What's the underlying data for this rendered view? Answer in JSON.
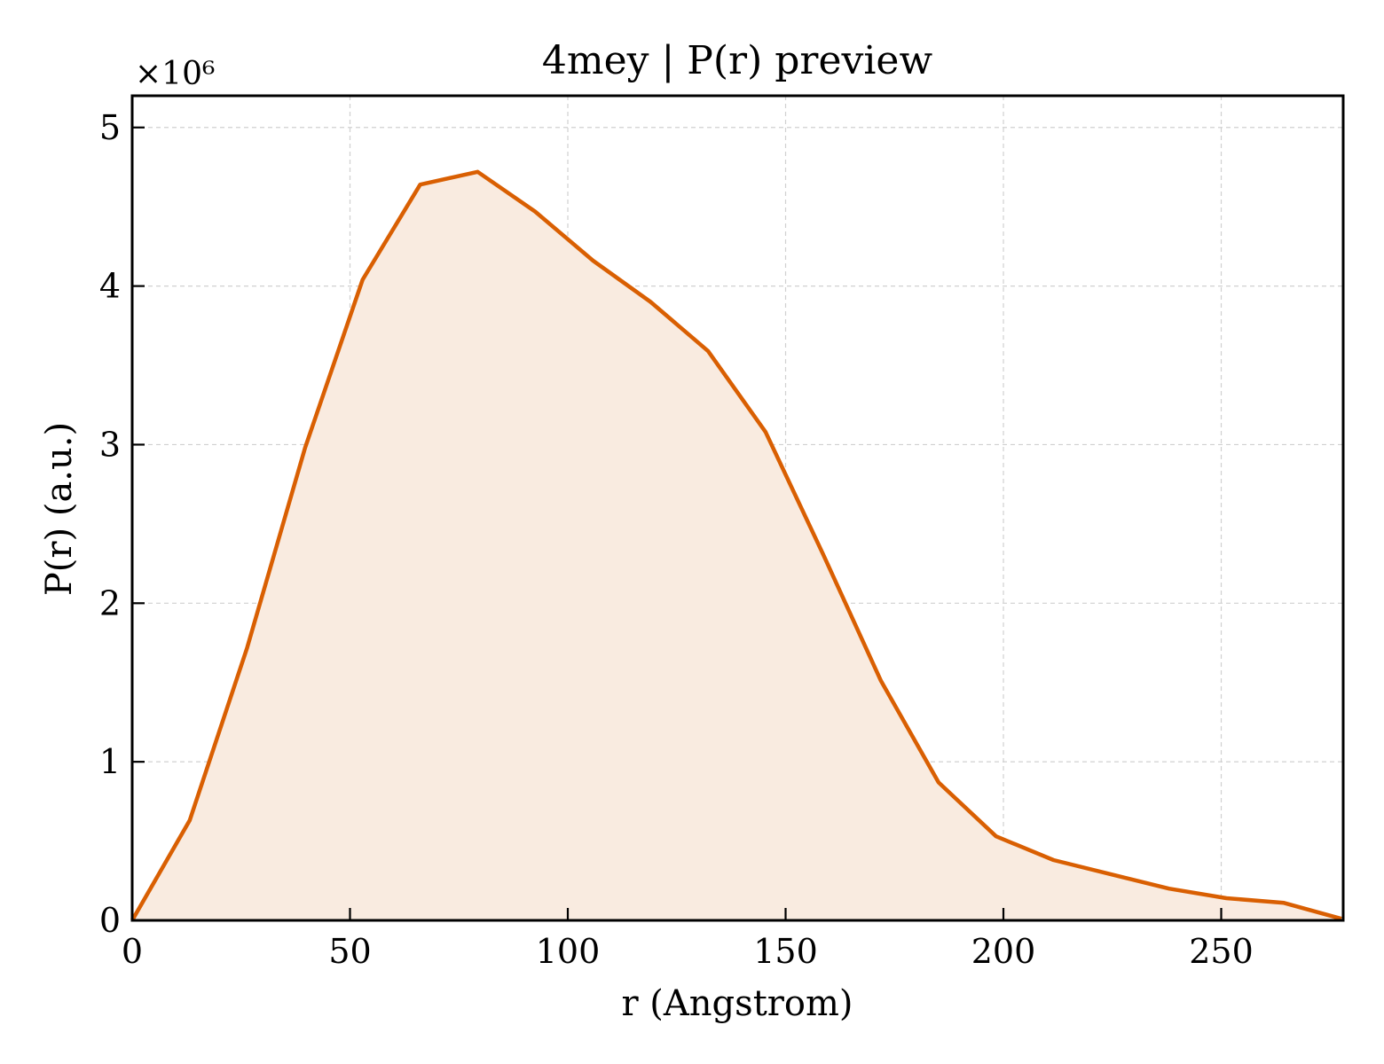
{
  "chart_data": {
    "type": "area",
    "title": "4mey | P(r) preview",
    "xlabel": "r (Angstrom)",
    "ylabel": "P(r) (a.u.)",
    "y_multiplier_label": "×10⁶",
    "xlim": [
      0,
      278
    ],
    "ylim": [
      0,
      5.2
    ],
    "xticks": [
      0,
      50,
      100,
      150,
      200,
      250
    ],
    "yticks": [
      0,
      1,
      2,
      3,
      4,
      5
    ],
    "grid": true,
    "series": [
      {
        "color": "#d95f02",
        "fill_color": "#f9ebe0",
        "x": [
          0,
          13.2,
          26.4,
          39.7,
          52.9,
          66.1,
          79.3,
          92.5,
          105.8,
          119.0,
          132.2,
          145.4,
          158.6,
          171.9,
          185.1,
          198.3,
          211.5,
          224.7,
          238.0,
          251.2,
          264.4,
          277.6
        ],
        "values": [
          0.0,
          0.63,
          1.72,
          2.98,
          4.04,
          4.64,
          4.72,
          4.47,
          4.16,
          3.9,
          3.59,
          3.08,
          2.31,
          1.51,
          0.87,
          0.53,
          0.38,
          0.29,
          0.2,
          0.14,
          0.11,
          0.01
        ]
      }
    ]
  }
}
